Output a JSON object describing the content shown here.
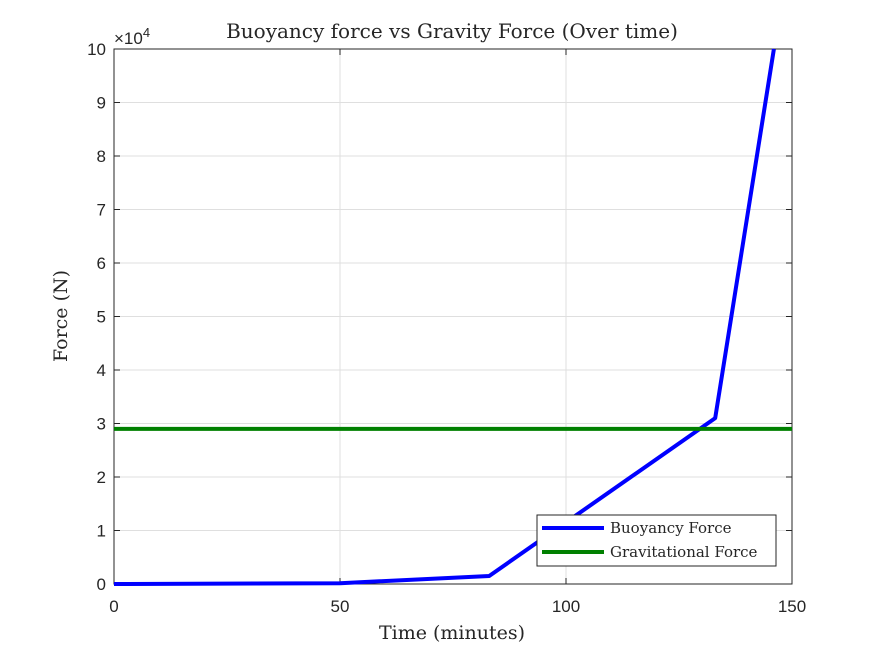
{
  "chart_data": {
    "type": "line",
    "title": "Buoyancy force vs Gravity Force (Over time)",
    "xlabel": "Time (minutes)",
    "ylabel": "Force (N)",
    "exponent_base": "×10",
    "exponent_power": "4",
    "xlim": [
      0,
      150
    ],
    "ylim": [
      0,
      100000
    ],
    "x_ticks": [
      0,
      50,
      100,
      150
    ],
    "x_tick_labels": [
      "0",
      "50",
      "100",
      "150"
    ],
    "y_ticks": [
      0,
      10000,
      20000,
      30000,
      40000,
      50000,
      60000,
      70000,
      80000,
      90000,
      100000
    ],
    "y_tick_labels": [
      "0",
      "1",
      "2",
      "3",
      "4",
      "5",
      "6",
      "7",
      "8",
      "9",
      "10"
    ],
    "grid": true,
    "legend_position": "bottom-right",
    "series": [
      {
        "name": "Buoyancy Force",
        "color": "#0000ff",
        "x": [
          0,
          50,
          83,
          133,
          146
        ],
        "y": [
          0,
          150,
          1500,
          31000,
          100000
        ]
      },
      {
        "name": "Gravitational Force",
        "color": "#008000",
        "x": [
          0,
          150
        ],
        "y": [
          29000,
          29000
        ]
      }
    ]
  }
}
